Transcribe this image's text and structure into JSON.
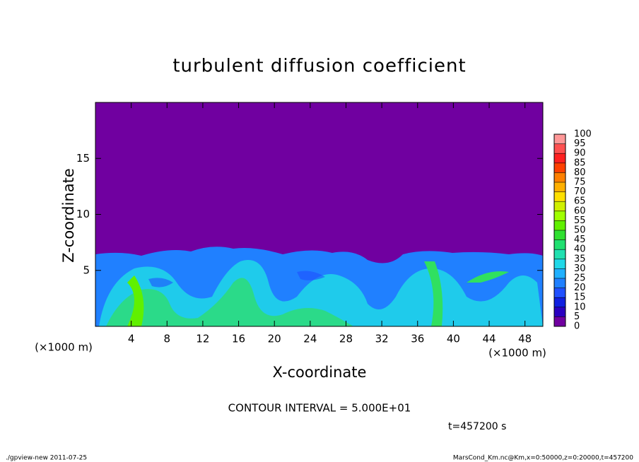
{
  "chart_data": {
    "type": "contour",
    "title": "turbulent diffusion coefficient",
    "x_label": "X-coordinate",
    "y_label": "Z-coordinate",
    "x_unit": "(×1000 m)",
    "y_unit": "(×1000 m)",
    "xlim": [
      0,
      50
    ],
    "xticks": [
      4,
      8,
      12,
      16,
      20,
      24,
      28,
      32,
      36,
      40,
      44,
      48
    ],
    "ylim": [
      0,
      20
    ],
    "yticks": [
      5,
      10,
      15
    ],
    "colorbar": {
      "levels": [
        0,
        5,
        10,
        15,
        20,
        25,
        30,
        35,
        40,
        45,
        50,
        55,
        60,
        65,
        70,
        75,
        80,
        85,
        90,
        95,
        100
      ],
      "colors": [
        "#7000a0",
        "#2a00c0",
        "#1020e0",
        "#2050ff",
        "#2080ff",
        "#20b0ff",
        "#20d8e8",
        "#20e0b0",
        "#20e070",
        "#30e030",
        "#60f000",
        "#a0ff00",
        "#d0f000",
        "#ffe000",
        "#ffb000",
        "#ff8000",
        "#ff4000",
        "#ff2020",
        "#ff5050",
        "#ff9898"
      ]
    },
    "contour_interval": "CONTOUR INTERVAL = 5.000E+01",
    "time_label": "t=457200 s",
    "footer_left": "./gpview-new  2011-07-25",
    "footer_right": "MarsCond_Km.nc@Km,x=0:50000,z=0:20000,t=457200"
  }
}
